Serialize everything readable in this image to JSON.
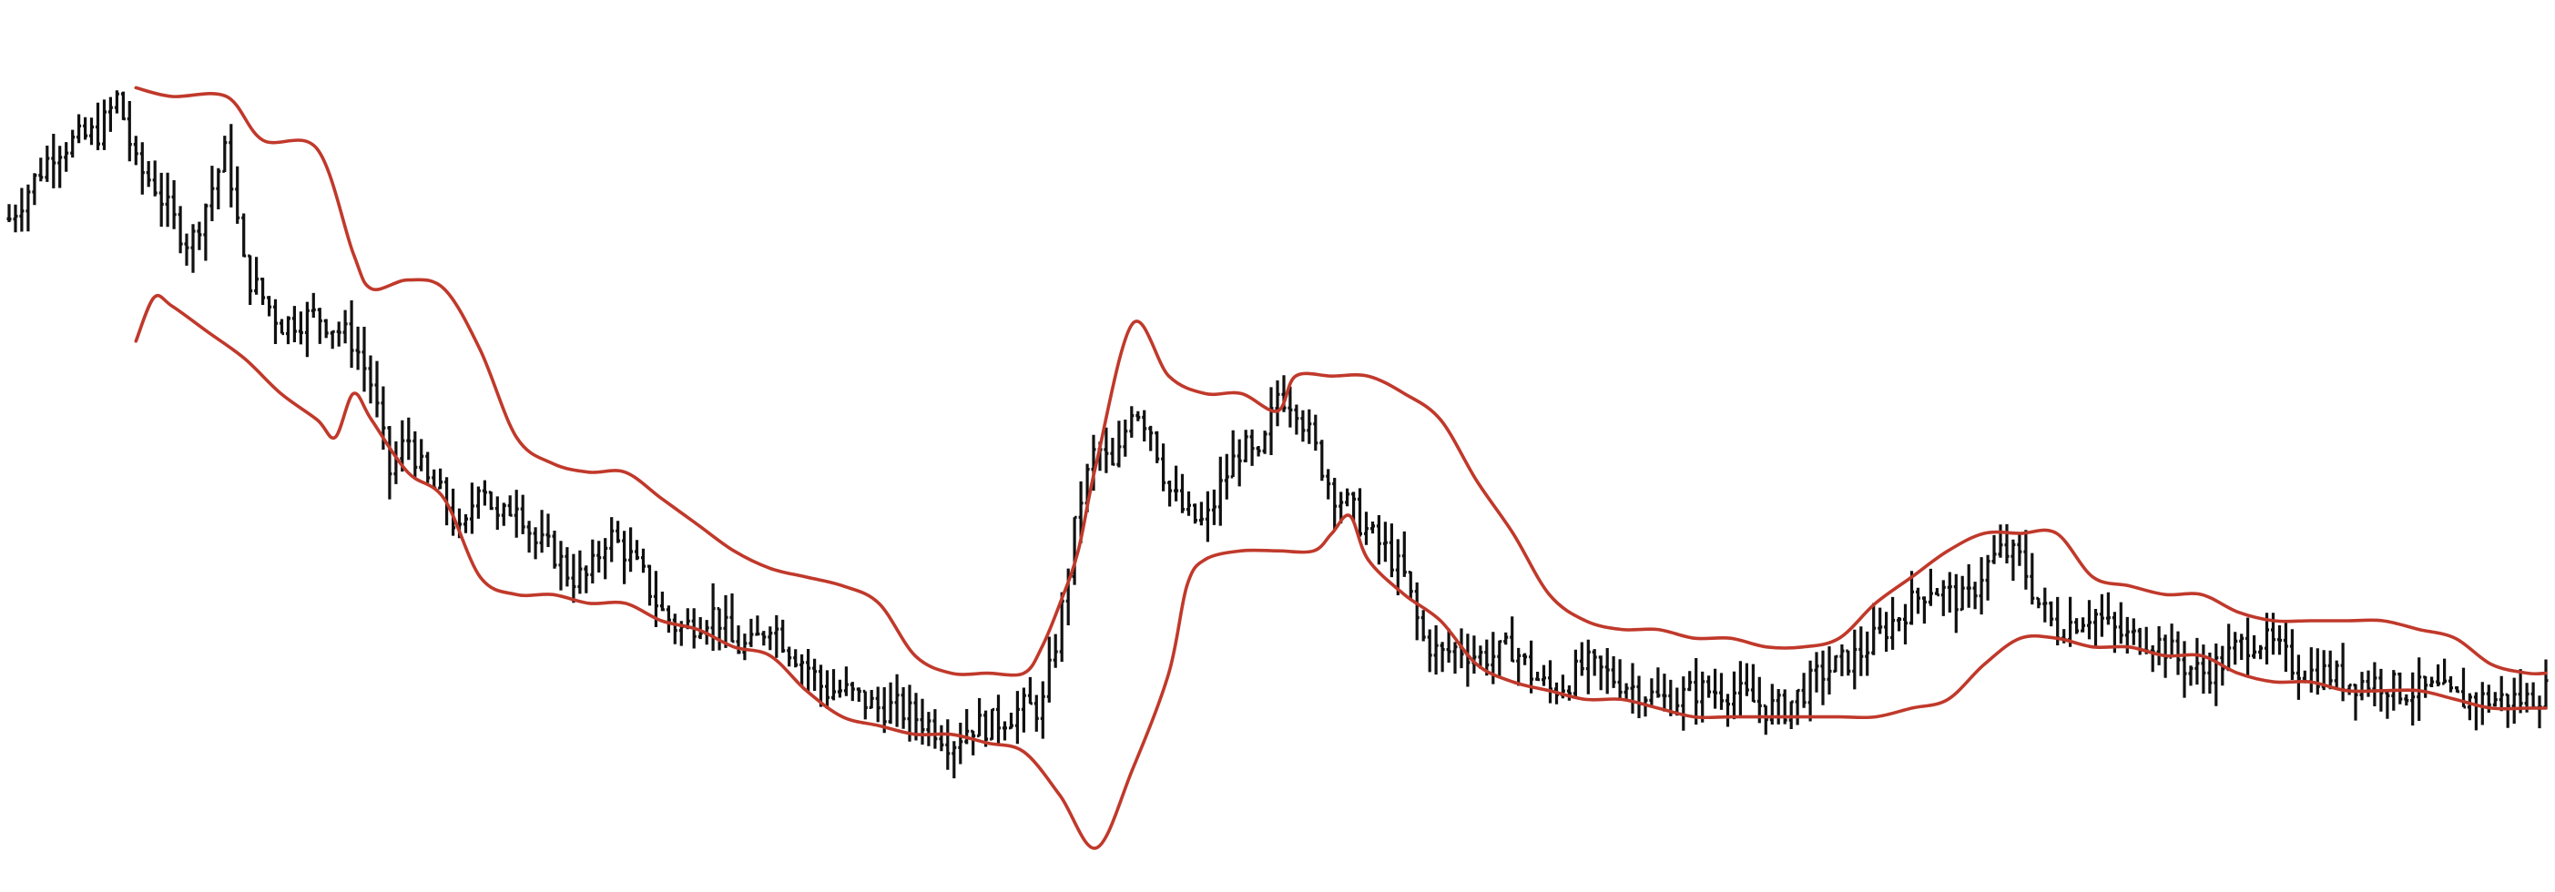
{
  "chart_data": {
    "type": "ohlc-with-bollinger-bands",
    "title": "",
    "xlabel": "",
    "ylabel": "",
    "grid": false,
    "legend": "none",
    "x_domain": [
      0,
      280
    ],
    "y_domain": [
      0,
      100
    ],
    "colors": {
      "price_bars": "#111111",
      "bands": "#c0392b",
      "background": "#ffffff"
    },
    "price_path": [
      [
        0,
        76
      ],
      [
        5,
        84
      ],
      [
        10,
        86
      ],
      [
        12,
        90
      ],
      [
        14,
        82
      ],
      [
        16,
        80
      ],
      [
        18,
        76
      ],
      [
        20,
        73
      ],
      [
        24,
        84
      ],
      [
        26,
        70
      ],
      [
        30,
        64
      ],
      [
        34,
        65
      ],
      [
        38,
        62
      ],
      [
        40,
        57
      ],
      [
        42,
        47
      ],
      [
        44,
        51
      ],
      [
        46,
        46
      ],
      [
        48,
        44
      ],
      [
        50,
        39
      ],
      [
        52,
        47
      ],
      [
        54,
        41
      ],
      [
        56,
        44
      ],
      [
        58,
        39
      ],
      [
        60,
        38
      ],
      [
        62,
        35
      ],
      [
        64,
        35
      ],
      [
        66,
        40
      ],
      [
        68,
        38
      ],
      [
        70,
        35
      ],
      [
        72,
        31
      ],
      [
        74,
        29
      ],
      [
        76,
        30
      ],
      [
        78,
        31
      ],
      [
        80,
        27
      ],
      [
        82,
        27
      ],
      [
        84,
        30
      ],
      [
        86,
        27
      ],
      [
        88,
        25
      ],
      [
        90,
        22
      ],
      [
        92,
        22
      ],
      [
        94,
        21
      ],
      [
        96,
        20
      ],
      [
        98,
        20
      ],
      [
        100,
        19
      ],
      [
        102,
        18
      ],
      [
        104,
        16
      ],
      [
        106,
        18
      ],
      [
        108,
        18
      ],
      [
        110,
        19
      ],
      [
        112,
        20
      ],
      [
        114,
        20
      ],
      [
        116,
        30
      ],
      [
        118,
        43
      ],
      [
        120,
        50
      ],
      [
        122,
        47
      ],
      [
        124,
        55
      ],
      [
        126,
        52
      ],
      [
        128,
        45
      ],
      [
        130,
        42
      ],
      [
        132,
        41
      ],
      [
        134,
        46
      ],
      [
        136,
        50
      ],
      [
        138,
        48
      ],
      [
        140,
        56
      ],
      [
        142,
        55
      ],
      [
        144,
        50
      ],
      [
        146,
        45
      ],
      [
        148,
        43
      ],
      [
        150,
        40
      ],
      [
        152,
        38
      ],
      [
        154,
        35
      ],
      [
        156,
        28
      ],
      [
        158,
        26
      ],
      [
        160,
        27
      ],
      [
        162,
        26
      ],
      [
        164,
        26
      ],
      [
        166,
        27
      ],
      [
        168,
        24
      ],
      [
        170,
        22
      ],
      [
        172,
        23
      ],
      [
        174,
        25
      ],
      [
        176,
        24
      ],
      [
        178,
        23
      ],
      [
        180,
        22
      ],
      [
        182,
        21
      ],
      [
        184,
        21
      ],
      [
        186,
        22
      ],
      [
        188,
        22
      ],
      [
        190,
        22
      ],
      [
        192,
        21
      ],
      [
        194,
        20
      ],
      [
        196,
        20
      ],
      [
        198,
        22
      ],
      [
        200,
        24
      ],
      [
        202,
        25
      ],
      [
        204,
        26
      ],
      [
        206,
        28
      ],
      [
        208,
        30
      ],
      [
        210,
        32
      ],
      [
        212,
        34
      ],
      [
        214,
        33
      ],
      [
        216,
        32
      ],
      [
        218,
        36
      ],
      [
        220,
        38
      ],
      [
        222,
        37
      ],
      [
        224,
        32
      ],
      [
        226,
        29
      ],
      [
        228,
        30
      ],
      [
        230,
        31
      ],
      [
        232,
        29
      ],
      [
        234,
        28
      ],
      [
        236,
        28
      ],
      [
        238,
        27
      ],
      [
        240,
        25
      ],
      [
        242,
        24
      ],
      [
        244,
        25
      ],
      [
        246,
        27
      ],
      [
        248,
        28
      ],
      [
        250,
        27
      ],
      [
        252,
        25
      ],
      [
        254,
        24
      ],
      [
        256,
        24
      ],
      [
        258,
        23
      ],
      [
        260,
        23
      ],
      [
        262,
        23
      ],
      [
        264,
        22
      ],
      [
        266,
        22
      ],
      [
        268,
        22
      ],
      [
        270,
        21
      ],
      [
        272,
        21
      ],
      [
        274,
        21
      ],
      [
        276,
        21
      ],
      [
        278,
        21
      ],
      [
        280,
        22
      ]
    ],
    "upper_band": [
      [
        14,
        91
      ],
      [
        18,
        90
      ],
      [
        24,
        90
      ],
      [
        28,
        85
      ],
      [
        34,
        84
      ],
      [
        38,
        72
      ],
      [
        40,
        68
      ],
      [
        44,
        69
      ],
      [
        48,
        68
      ],
      [
        52,
        61
      ],
      [
        56,
        51
      ],
      [
        60,
        48
      ],
      [
        64,
        47
      ],
      [
        68,
        47
      ],
      [
        72,
        44
      ],
      [
        76,
        41
      ],
      [
        80,
        38
      ],
      [
        84,
        36
      ],
      [
        88,
        35
      ],
      [
        92,
        34
      ],
      [
        96,
        32
      ],
      [
        100,
        26
      ],
      [
        104,
        24
      ],
      [
        108,
        24
      ],
      [
        112,
        24
      ],
      [
        114,
        27
      ],
      [
        116,
        32
      ],
      [
        118,
        38
      ],
      [
        120,
        48
      ],
      [
        124,
        64
      ],
      [
        128,
        58
      ],
      [
        132,
        56
      ],
      [
        136,
        56
      ],
      [
        140,
        54
      ],
      [
        142,
        58
      ],
      [
        146,
        58
      ],
      [
        150,
        58
      ],
      [
        154,
        56
      ],
      [
        158,
        53
      ],
      [
        162,
        46
      ],
      [
        166,
        40
      ],
      [
        170,
        33
      ],
      [
        174,
        30
      ],
      [
        178,
        29
      ],
      [
        182,
        29
      ],
      [
        186,
        28
      ],
      [
        190,
        28
      ],
      [
        194,
        27
      ],
      [
        198,
        27
      ],
      [
        202,
        28
      ],
      [
        206,
        32
      ],
      [
        210,
        35
      ],
      [
        214,
        38
      ],
      [
        218,
        40
      ],
      [
        222,
        40
      ],
      [
        226,
        40
      ],
      [
        230,
        35
      ],
      [
        234,
        34
      ],
      [
        238,
        33
      ],
      [
        242,
        33
      ],
      [
        246,
        31
      ],
      [
        250,
        30
      ],
      [
        254,
        30
      ],
      [
        258,
        30
      ],
      [
        262,
        30
      ],
      [
        266,
        29
      ],
      [
        270,
        28
      ],
      [
        274,
        25
      ],
      [
        278,
        24
      ],
      [
        280,
        24
      ]
    ],
    "lower_band": [
      [
        14,
        62
      ],
      [
        16,
        67
      ],
      [
        18,
        66
      ],
      [
        22,
        63
      ],
      [
        26,
        60
      ],
      [
        30,
        56
      ],
      [
        34,
        53
      ],
      [
        36,
        51
      ],
      [
        38,
        56
      ],
      [
        40,
        53
      ],
      [
        44,
        47
      ],
      [
        48,
        44
      ],
      [
        52,
        35
      ],
      [
        56,
        33
      ],
      [
        60,
        33
      ],
      [
        64,
        32
      ],
      [
        68,
        32
      ],
      [
        72,
        30
      ],
      [
        76,
        29
      ],
      [
        80,
        27
      ],
      [
        84,
        26
      ],
      [
        88,
        22
      ],
      [
        92,
        19
      ],
      [
        96,
        18
      ],
      [
        100,
        17
      ],
      [
        104,
        17
      ],
      [
        108,
        16
      ],
      [
        112,
        15
      ],
      [
        116,
        10
      ],
      [
        120,
        4
      ],
      [
        124,
        13
      ],
      [
        128,
        24
      ],
      [
        130,
        34
      ],
      [
        132,
        37
      ],
      [
        136,
        38
      ],
      [
        140,
        38
      ],
      [
        144,
        38
      ],
      [
        146,
        40
      ],
      [
        148,
        42
      ],
      [
        150,
        37
      ],
      [
        154,
        33
      ],
      [
        158,
        30
      ],
      [
        162,
        25
      ],
      [
        166,
        23
      ],
      [
        170,
        22
      ],
      [
        174,
        21
      ],
      [
        178,
        21
      ],
      [
        182,
        20
      ],
      [
        186,
        19
      ],
      [
        190,
        19
      ],
      [
        194,
        19
      ],
      [
        198,
        19
      ],
      [
        202,
        19
      ],
      [
        206,
        19
      ],
      [
        210,
        20
      ],
      [
        214,
        21
      ],
      [
        218,
        25
      ],
      [
        222,
        28
      ],
      [
        226,
        28
      ],
      [
        230,
        27
      ],
      [
        234,
        27
      ],
      [
        238,
        26
      ],
      [
        242,
        26
      ],
      [
        246,
        24
      ],
      [
        250,
        23
      ],
      [
        254,
        23
      ],
      [
        258,
        22
      ],
      [
        262,
        22
      ],
      [
        266,
        22
      ],
      [
        270,
        21
      ],
      [
        274,
        20
      ],
      [
        278,
        20
      ],
      [
        280,
        20
      ]
    ]
  }
}
